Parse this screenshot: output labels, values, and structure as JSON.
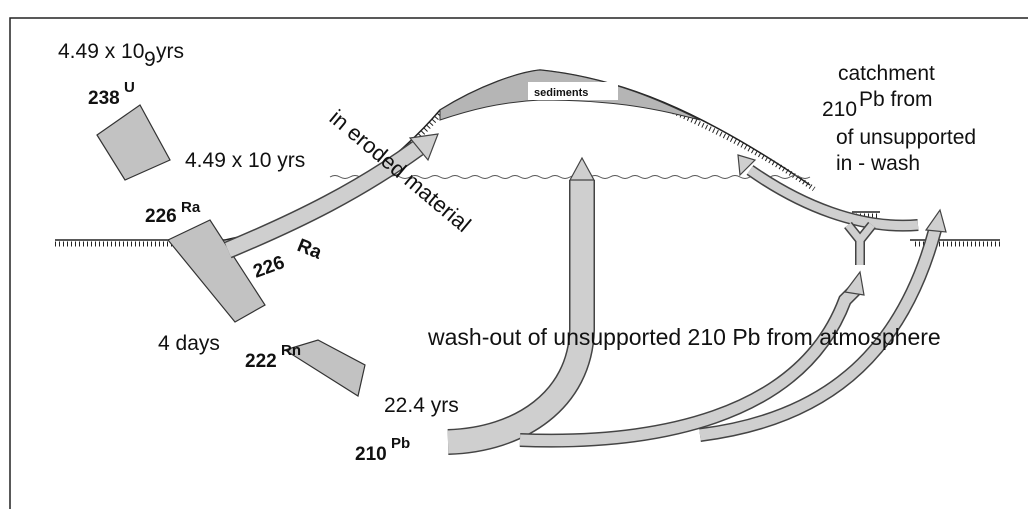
{
  "labels": {
    "u_half_life": "4.49 x 10",
    "u_half_life_exp": "9",
    "u_half_life_unit": "yrs",
    "u_mass": "238",
    "u_symbol": "U",
    "ra_half_life": "4.49 x 10 yrs",
    "ra_mass": "226",
    "ra_symbol": "Ra",
    "ra_flow_symbol": "Ra",
    "ra_flow_mass": "226",
    "eroded": "in eroded material",
    "sediments": "sediments",
    "catchment_1": "catchment",
    "catchment_mass": "210",
    "catchment_2": "Pb  from",
    "catchment_3": "of unsupported",
    "catchment_4": "in - wash",
    "rn_half_life": "4 days",
    "rn_mass": "222",
    "rn_symbol": "Rn",
    "pb_half_life": "22.4 yrs",
    "pb_mass": "210",
    "pb_symbol": "Pb",
    "washout": "wash-out of unsupported 210 Pb from atmosphere"
  }
}
